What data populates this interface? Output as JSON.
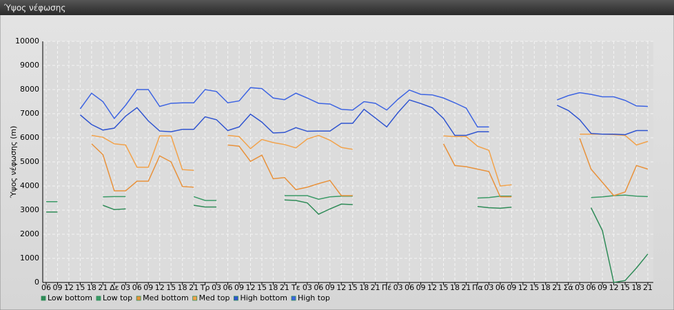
{
  "chart_data": {
    "type": "line",
    "title": "Ύψος νέφωσης",
    "y_label": "Ύψος νέφωσης (m)",
    "categories": [
      "06",
      "09",
      "12",
      "15",
      "18",
      "21",
      "Δε",
      "03",
      "06",
      "09",
      "12",
      "15",
      "18",
      "21",
      "Τρ",
      "03",
      "06",
      "09",
      "12",
      "15",
      "18",
      "21",
      "Τε",
      "03",
      "06",
      "09",
      "12",
      "15",
      "18",
      "21",
      "Πέ",
      "03",
      "06",
      "09",
      "12",
      "15",
      "18",
      "21",
      "Πα",
      "03",
      "06",
      "09",
      "12",
      "15",
      "18",
      "21",
      "Σά",
      "03",
      "06",
      "09",
      "12",
      "15",
      "18",
      "21"
    ],
    "ylim": [
      0,
      10000
    ],
    "yticks": [
      0,
      1000,
      2000,
      3000,
      4000,
      5000,
      6000,
      7000,
      8000,
      9000,
      10000
    ],
    "grid": true,
    "series": [
      {
        "name": "Low bottom",
        "color": "#2e8b57",
        "values": [
          2920,
          2920,
          null,
          null,
          null,
          3200,
          3020,
          3050,
          null,
          null,
          null,
          null,
          null,
          3200,
          3130,
          3130,
          null,
          null,
          null,
          null,
          null,
          3420,
          3400,
          3300,
          2830,
          3050,
          3250,
          3230,
          null,
          null,
          null,
          null,
          null,
          null,
          null,
          null,
          null,
          null,
          3150,
          3100,
          3080,
          3120,
          null,
          null,
          null,
          null,
          null,
          null,
          3100,
          2150,
          0,
          80,
          600,
          1180
        ]
      },
      {
        "name": "Low top",
        "color": "#3a9a66",
        "values": [
          3350,
          3350,
          null,
          null,
          null,
          3550,
          3560,
          3560,
          null,
          null,
          null,
          null,
          null,
          3560,
          3400,
          3400,
          null,
          null,
          null,
          null,
          null,
          3600,
          3600,
          3600,
          3450,
          3550,
          3580,
          3580,
          null,
          null,
          null,
          null,
          null,
          null,
          null,
          null,
          null,
          null,
          3500,
          3520,
          3580,
          3580,
          null,
          null,
          null,
          null,
          null,
          null,
          3520,
          3550,
          3600,
          3620,
          3580,
          3560
        ]
      },
      {
        "name": "Med bottom",
        "color": "#e8913a",
        "values": [
          null,
          null,
          null,
          null,
          5750,
          5300,
          3800,
          3800,
          4200,
          4200,
          5250,
          5000,
          3980,
          3950,
          null,
          null,
          5700,
          5650,
          5020,
          5280,
          4300,
          4350,
          3850,
          3950,
          4100,
          4230,
          3600,
          3600,
          null,
          null,
          null,
          null,
          null,
          null,
          null,
          5750,
          4850,
          4800,
          4700,
          4600,
          3550,
          3550,
          null,
          null,
          null,
          null,
          null,
          5980,
          4700,
          4150,
          3600,
          3750,
          4850,
          4700
        ]
      },
      {
        "name": "Med top",
        "color": "#f2a24a",
        "values": [
          null,
          null,
          null,
          null,
          6100,
          6020,
          5750,
          5700,
          4780,
          4780,
          6080,
          6080,
          4680,
          4650,
          null,
          null,
          6100,
          6050,
          5550,
          5930,
          5800,
          5720,
          5580,
          5950,
          6100,
          5900,
          5600,
          5520,
          null,
          null,
          null,
          null,
          null,
          null,
          null,
          6080,
          6050,
          6050,
          5650,
          5480,
          4000,
          4050,
          null,
          null,
          null,
          null,
          null,
          6150,
          6150,
          6150,
          6130,
          6100,
          5700,
          5850
        ]
      },
      {
        "name": "High bottom",
        "color": "#2f54d0",
        "values": [
          null,
          null,
          null,
          6950,
          6550,
          6320,
          6400,
          6900,
          7250,
          6700,
          6280,
          6250,
          6350,
          6350,
          6870,
          6750,
          6300,
          6450,
          6980,
          6650,
          6200,
          6220,
          6420,
          6270,
          6280,
          6280,
          6600,
          6600,
          7180,
          6820,
          6450,
          7050,
          7570,
          7420,
          7250,
          6800,
          6100,
          6100,
          6250,
          6250,
          null,
          null,
          null,
          null,
          null,
          7350,
          7130,
          6750,
          6180,
          6150,
          6150,
          6130,
          6300,
          6300
        ]
      },
      {
        "name": "High top",
        "color": "#3d64e2",
        "values": [
          null,
          null,
          null,
          7200,
          7850,
          7500,
          6800,
          7350,
          8000,
          8000,
          7300,
          7430,
          7450,
          7450,
          8000,
          7920,
          7450,
          7530,
          8080,
          8040,
          7650,
          7580,
          7850,
          7650,
          7430,
          7400,
          7180,
          7150,
          7500,
          7430,
          7150,
          7600,
          7980,
          7800,
          7780,
          7650,
          7450,
          7230,
          6450,
          6450,
          null,
          null,
          null,
          null,
          null,
          7570,
          7750,
          7870,
          7800,
          7700,
          7700,
          7550,
          7320,
          7300
        ]
      }
    ]
  }
}
